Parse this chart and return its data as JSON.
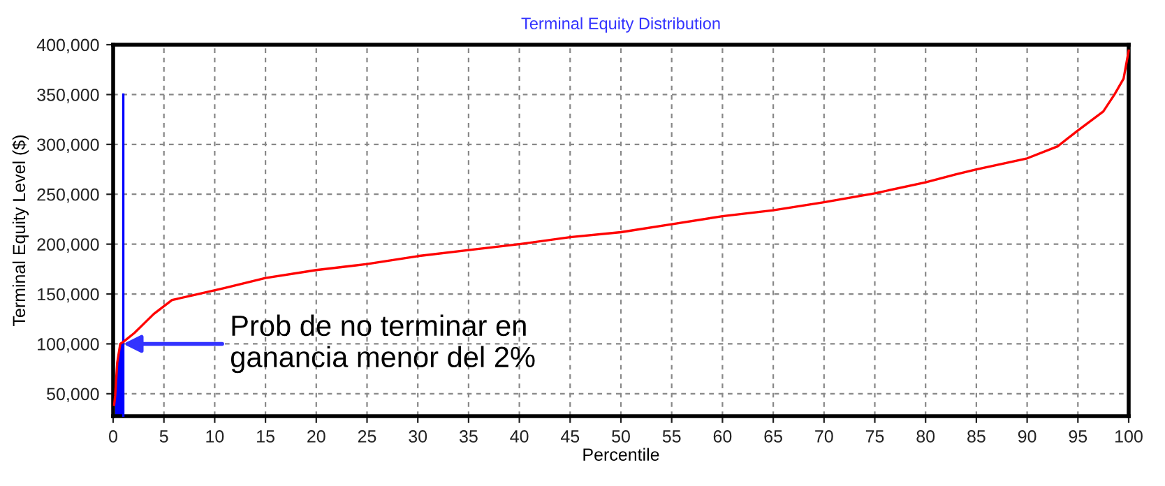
{
  "chart_data": {
    "type": "line",
    "title": "Terminal Equity Distribution",
    "xlabel": "Percentile",
    "ylabel": "Terminal Equity Level ($)",
    "xlim": [
      0,
      100
    ],
    "xticks": [
      0,
      5,
      10,
      15,
      20,
      25,
      30,
      35,
      40,
      45,
      50,
      55,
      60,
      65,
      70,
      75,
      80,
      85,
      90,
      95,
      100
    ],
    "ylim": [
      27500,
      400000
    ],
    "yticks": [
      {
        "value": 50000,
        "label": "50,000"
      },
      {
        "value": 100000,
        "label": "100,000"
      },
      {
        "value": 150000,
        "label": "150,000"
      },
      {
        "value": 200000,
        "label": "200,000"
      },
      {
        "value": 250000,
        "label": "250,000"
      },
      {
        "value": 300000,
        "label": "300,000"
      },
      {
        "value": 350000,
        "label": "350,000"
      },
      {
        "value": 400000,
        "label": "400,000"
      }
    ],
    "grid": true,
    "series": [
      {
        "type": "area",
        "color": "#0000ff",
        "x": [
          0.2,
          0.4,
          0.7,
          1
        ],
        "values": [
          48000,
          81000,
          100000,
          102000
        ]
      },
      {
        "type": "line",
        "color": "#0000ff",
        "x": [
          1,
          1
        ],
        "values": [
          28000,
          350000
        ]
      },
      {
        "color": "#ff0000",
        "x": [
          0.1,
          0.2,
          0.4,
          0.7,
          1,
          2.1,
          4,
          5.8,
          8,
          11,
          15,
          20,
          25,
          30,
          35,
          40,
          45,
          50,
          55,
          60,
          65,
          70,
          75,
          80,
          83,
          85,
          90,
          93,
          95,
          97.5,
          98.6,
          99.5,
          100
        ],
        "values": [
          39000,
          48000,
          81000,
          100000,
          102000,
          111000,
          130000,
          144000,
          149000,
          156000,
          166000,
          174000,
          180000,
          188000,
          194000,
          200000,
          207000,
          212000,
          220000,
          228000,
          234000,
          242000,
          251000,
          262000,
          270000,
          275000,
          286000,
          298000,
          314000,
          333000,
          350000,
          366000,
          394000
        ]
      }
    ],
    "annotations": [
      {
        "text": "Prob de no terminar en\nganancia menor del 2%",
        "x": 1,
        "y": 100000
      }
    ]
  }
}
